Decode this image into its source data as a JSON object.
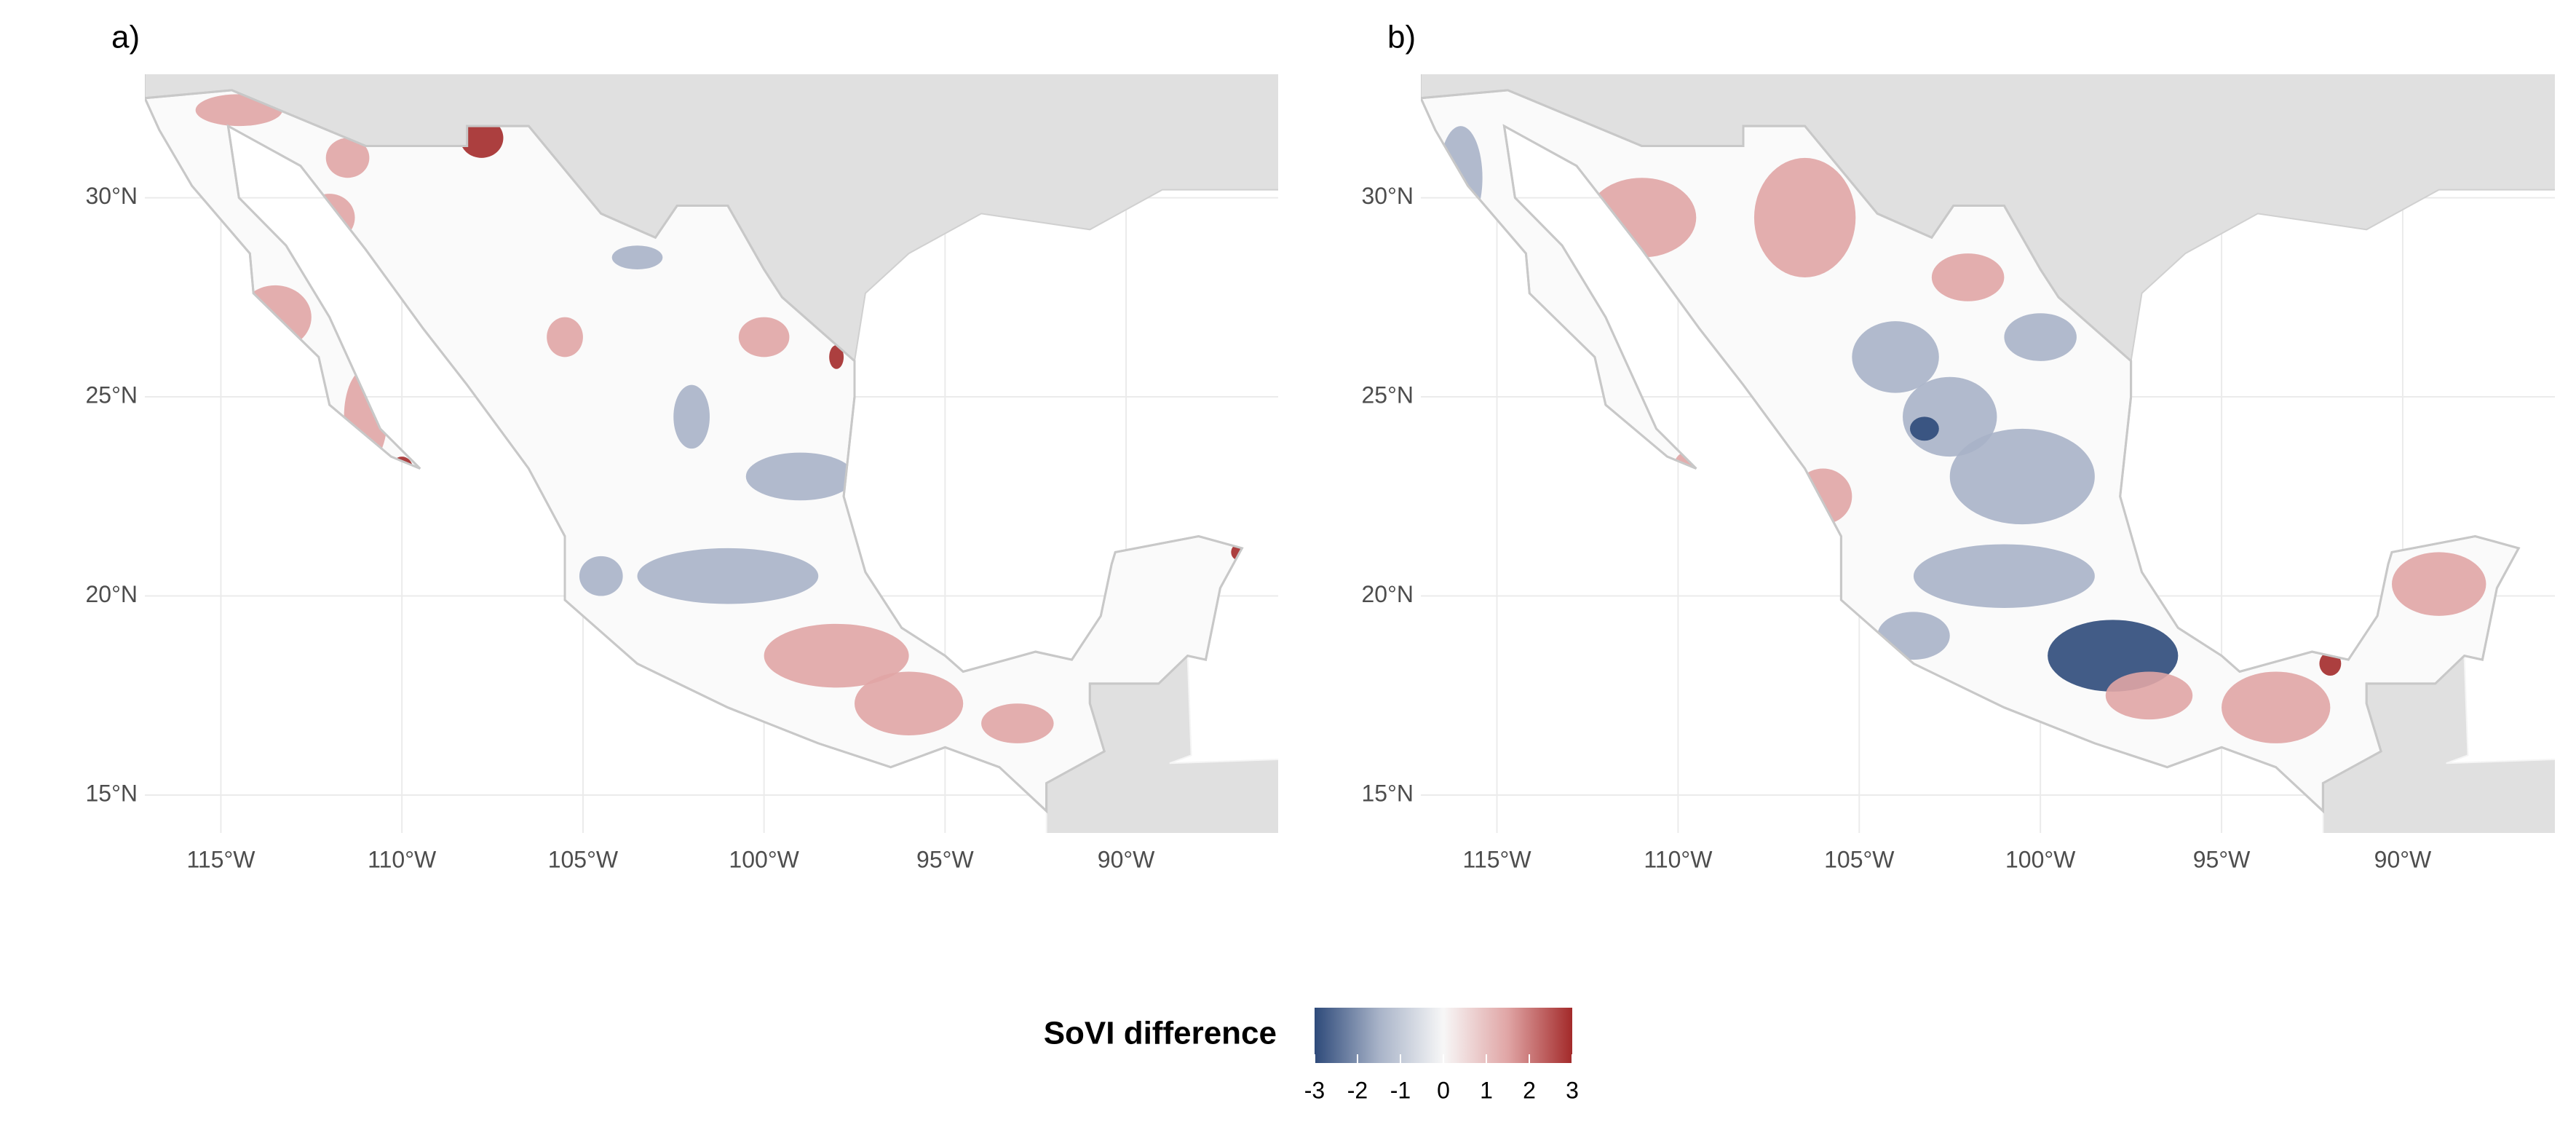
{
  "maps": [
    {
      "tag": "a)",
      "xlim": [
        -117.1,
        -85.8
      ],
      "ylim": [
        14.05,
        33.1
      ],
      "xticks": [
        {
          "value": -115,
          "label": "115°W"
        },
        {
          "value": -110,
          "label": "110°W"
        },
        {
          "value": -105,
          "label": "105°W"
        },
        {
          "value": -100,
          "label": "100°W"
        },
        {
          "value": -95,
          "label": "95°W"
        },
        {
          "value": -90,
          "label": "90°W"
        }
      ],
      "yticks": [
        {
          "value": 15,
          "label": "15°N"
        },
        {
          "value": 20,
          "label": "20°N"
        },
        {
          "value": 25,
          "label": "25°N"
        },
        {
          "value": 30,
          "label": "30°N"
        }
      ]
    },
    {
      "tag": "b)",
      "xlim": [
        -117.1,
        -85.8
      ],
      "ylim": [
        14.05,
        33.1
      ],
      "xticks": [
        {
          "value": -115,
          "label": "115°W"
        },
        {
          "value": -110,
          "label": "110°W"
        },
        {
          "value": -105,
          "label": "105°W"
        },
        {
          "value": -100,
          "label": "100°W"
        },
        {
          "value": -95,
          "label": "95°W"
        },
        {
          "value": -90,
          "label": "90°W"
        }
      ],
      "yticks": [
        {
          "value": 15,
          "label": "15°N"
        },
        {
          "value": 20,
          "label": "20°N"
        },
        {
          "value": 25,
          "label": "25°N"
        },
        {
          "value": 30,
          "label": "30°N"
        }
      ]
    }
  ],
  "legend": {
    "title": "SoVI difference",
    "lim": [
      -3,
      3
    ],
    "ticks": [
      -3,
      -2,
      -1,
      0,
      1,
      2,
      3
    ],
    "colors": [
      "#2e4a7a",
      "#a8b3c8",
      "#f7f7f7",
      "#e0a5a5",
      "#a32a2a"
    ]
  }
}
